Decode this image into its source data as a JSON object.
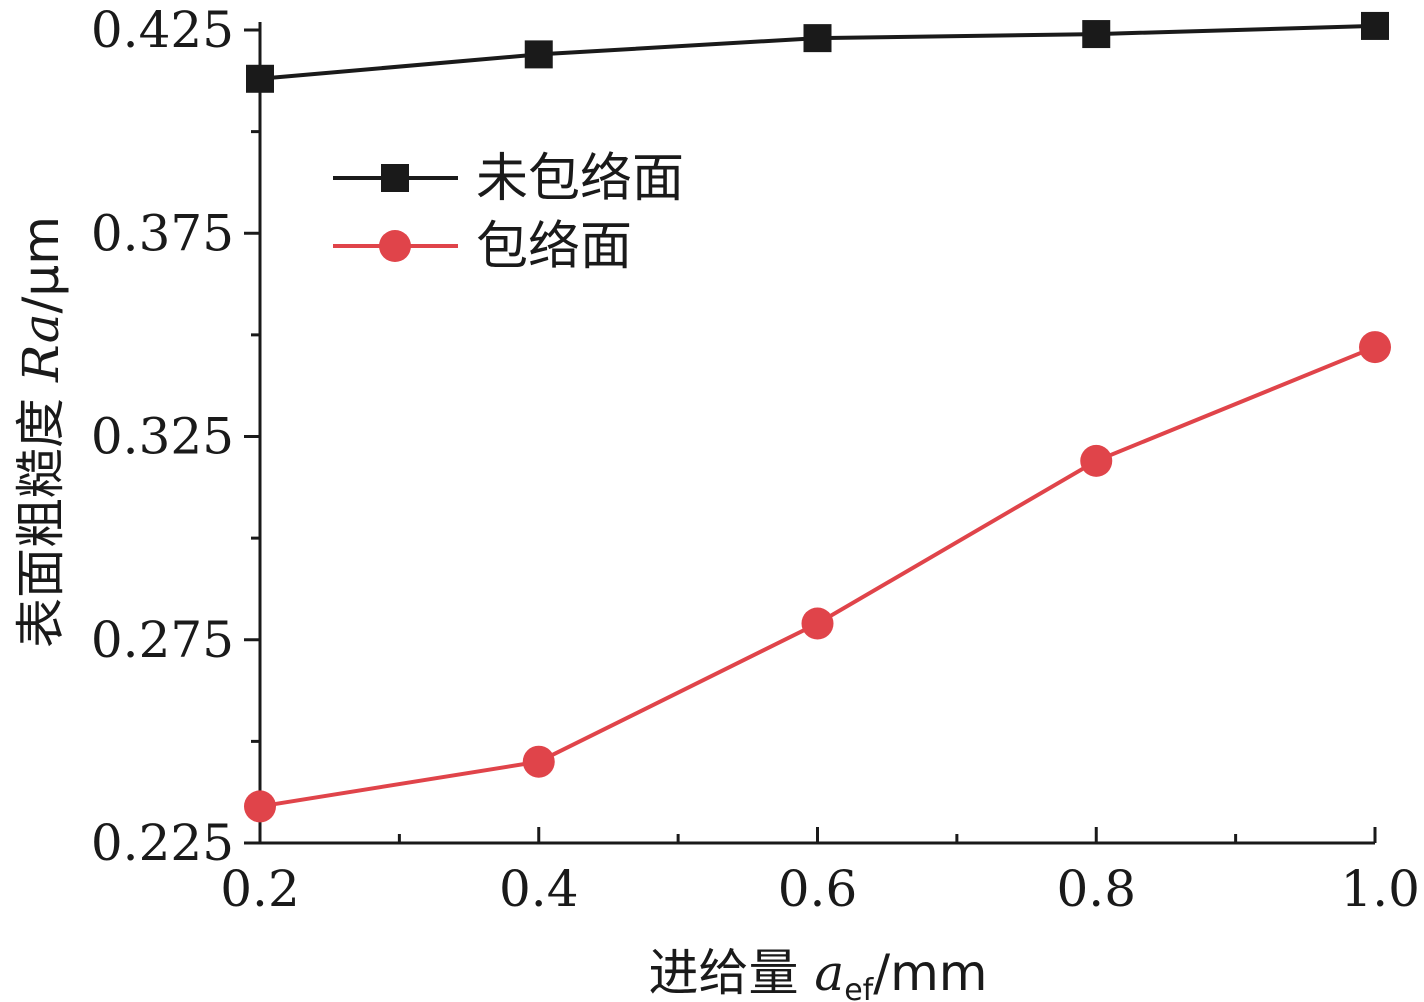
{
  "chart_data": {
    "type": "line",
    "x": [
      0.2,
      0.4,
      0.6,
      0.8,
      1.0
    ],
    "xlim": [
      0.2,
      1.0
    ],
    "ylim": [
      0.225,
      0.425
    ],
    "x_ticks": [
      "0.2",
      "0.4",
      "0.6",
      "0.8",
      "1.0"
    ],
    "y_ticks": [
      "0.225",
      "0.275",
      "0.325",
      "0.375",
      "0.425"
    ],
    "x_tick_values": [
      0.2,
      0.4,
      0.6,
      0.8,
      1.0
    ],
    "y_tick_values": [
      0.225,
      0.275,
      0.325,
      0.375,
      0.425
    ],
    "x_minor_tick_values": [
      0.3,
      0.5,
      0.7,
      0.9
    ],
    "y_minor_tick_values": [
      0.25,
      0.3,
      0.35,
      0.4
    ],
    "xlabel": {
      "prefix": "进给量 ",
      "var": "a",
      "sub": "ef",
      "suffix": "/mm"
    },
    "ylabel": {
      "prefix": "表面粗糙度 ",
      "var": "Ra",
      "suffix": "/μm"
    },
    "grid": false,
    "legend_position": "top-left",
    "series": [
      {
        "name": "未包络面",
        "values": [
          0.413,
          0.419,
          0.423,
          0.424,
          0.426
        ],
        "color": "#1a1a1a",
        "marker": "square"
      },
      {
        "name": "包络面",
        "values": [
          0.234,
          0.245,
          0.279,
          0.319,
          0.347
        ],
        "color": "#e0444a",
        "marker": "circle"
      }
    ]
  }
}
